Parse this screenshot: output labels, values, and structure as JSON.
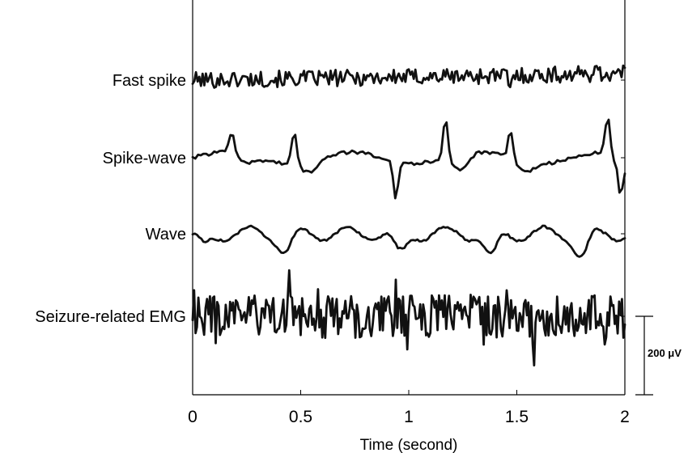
{
  "chart_data": {
    "type": "line",
    "xlabel": "Time (second)",
    "xlim": [
      0,
      2
    ],
    "xticks": [
      "0",
      "0.5",
      "1",
      "1.5",
      "2"
    ],
    "xtick_values": [
      0,
      0.5,
      1,
      1.5,
      2
    ],
    "scale_bar": {
      "label": "200 μV",
      "value_uV": 200
    },
    "series": [
      {
        "name": "Fast spike",
        "baseline_uV": 0,
        "peaks": [
          {
            "x": 1.47,
            "y": -40
          },
          {
            "x": 1.86,
            "y": 30
          }
        ]
      },
      {
        "name": "Spike-wave",
        "baseline_uV": 0,
        "peaks": [
          {
            "x": 0.18,
            "y": 55
          },
          {
            "x": 0.47,
            "y": 85
          },
          {
            "x": 0.94,
            "y": -95
          },
          {
            "x": 1.17,
            "y": 110
          },
          {
            "x": 1.47,
            "y": 75
          },
          {
            "x": 1.92,
            "y": 95
          },
          {
            "x": 1.98,
            "y": -75
          }
        ]
      },
      {
        "name": "Wave",
        "baseline_uV": 0,
        "troughs": [
          {
            "x": 0.05,
            "y": -35
          },
          {
            "x": 0.43,
            "y": -45
          },
          {
            "x": 0.96,
            "y": -55
          },
          {
            "x": 1.38,
            "y": -65
          },
          {
            "x": 1.8,
            "y": -60
          }
        ]
      },
      {
        "name": "Seizure-related EMG",
        "baseline_uV": 0,
        "peaks": [
          {
            "x": 0.45,
            "y": 130
          },
          {
            "x": 1.58,
            "y": -110
          }
        ]
      }
    ]
  }
}
